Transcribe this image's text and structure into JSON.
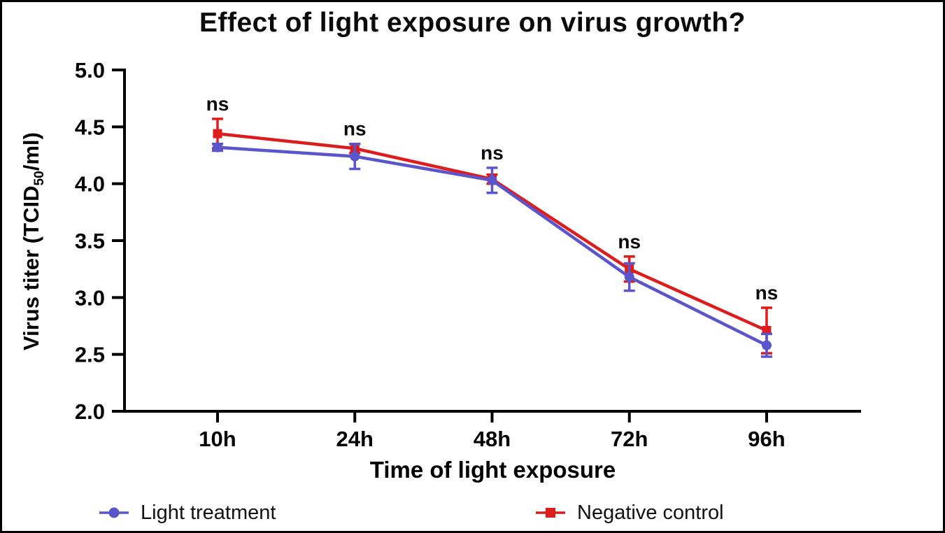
{
  "window": {
    "background": "#ffffff",
    "border_color": "#000000"
  },
  "chart_data": {
    "type": "line",
    "title": "Effect of light exposure on virus growth?",
    "xlabel": "Time of light exposure",
    "ylabel": "Virus titer (TCID50/ml)",
    "ylabel_parts": {
      "pre": "Virus titer (TCID",
      "sub": "50",
      "post": "/ml)"
    },
    "categories": [
      "10h",
      "24h",
      "48h",
      "72h",
      "96h"
    ],
    "ylim": [
      2.0,
      5.0
    ],
    "yticks": [
      5.0,
      4.5,
      4.0,
      3.5,
      3.0,
      2.5,
      2.0
    ],
    "ytick_labels": [
      "5.0",
      "4.5",
      "4.0",
      "3.5",
      "3.0",
      "2.5",
      "2.0"
    ],
    "grid": false,
    "legend_position": "bottom",
    "series": [
      {
        "name": "Negative control",
        "color": "#dd1c1c",
        "marker": "square",
        "values": [
          4.44,
          4.31,
          4.04,
          3.25,
          2.71
        ],
        "errors": [
          0.13,
          0.04,
          0.04,
          0.11,
          0.2
        ]
      },
      {
        "name": "Light treatment",
        "color": "#5b55cb",
        "marker": "circle",
        "values": [
          4.32,
          4.24,
          4.03,
          3.18,
          2.58
        ],
        "errors": [
          0.03,
          0.11,
          0.11,
          0.12,
          0.1
        ]
      }
    ],
    "annotations": [
      {
        "label": "ns",
        "category": "10h"
      },
      {
        "label": "ns",
        "category": "24h"
      },
      {
        "label": "ns",
        "category": "48h"
      },
      {
        "label": "ns",
        "category": "72h"
      },
      {
        "label": "ns",
        "category": "96h"
      }
    ]
  },
  "legend": {
    "items": [
      {
        "label": "Light treatment",
        "color": "#5b55cb",
        "marker": "circle"
      },
      {
        "label": "Negative control",
        "color": "#dd1c1c",
        "marker": "square"
      }
    ]
  }
}
